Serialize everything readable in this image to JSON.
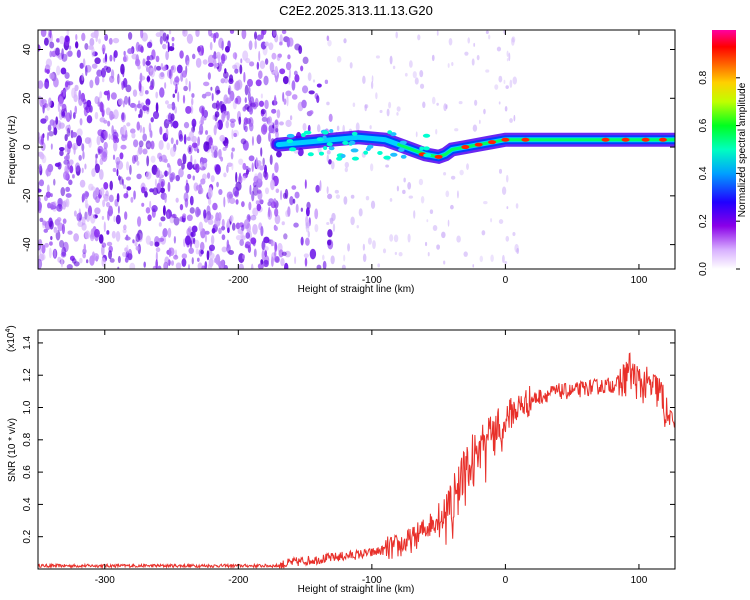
{
  "title": "C2E2.2025.313.11.13.G20",
  "chart_data": [
    {
      "type": "heatmap",
      "name": "spectrogram",
      "xlabel": "Height of straight line (km)",
      "ylabel": "Frequency (Hz)",
      "xlim": [
        -350,
        127
      ],
      "ylim": [
        -50,
        48
      ],
      "xticks": [
        -300,
        -200,
        -100,
        0,
        100
      ],
      "yticks": [
        -40,
        -20,
        0,
        20,
        40
      ],
      "colorbar": {
        "label": "Normalized spectral amplitude",
        "range": [
          0,
          1
        ],
        "ticks": [
          "0.0",
          "0.2",
          "0.4",
          "0.6",
          "0.8"
        ],
        "tick_values": [
          0,
          0.2,
          0.4,
          0.6,
          0.8
        ],
        "colors": [
          "#ffffff",
          "#8a00e8",
          "#0000ff",
          "#00c8ff",
          "#00ff40",
          "#ffff00",
          "#ff8000",
          "#ff0000",
          "#ff00b0"
        ]
      },
      "description_values": {
        "signal_track": {
          "x": [
            -170,
            -150,
            -130,
            -110,
            -90,
            -80,
            -70,
            -60,
            -50,
            -45,
            -40,
            -30,
            -20,
            -10,
            0,
            20,
            40,
            60,
            80,
            100,
            127
          ],
          "freq": [
            1,
            2,
            3,
            4,
            3,
            1,
            -1,
            -3,
            -4,
            -3,
            -1,
            0,
            1,
            2,
            3,
            3,
            3,
            3,
            3,
            3,
            3
          ]
        }
      }
    },
    {
      "type": "line",
      "name": "snr",
      "xlabel": "Height of straight line (km)",
      "ylabel": "SNR (10 * v/v)",
      "scale_label": "(x10",
      "scale_exponent": "4",
      "xlim": [
        -350,
        127
      ],
      "ylim": [
        0,
        1.48
      ],
      "xticks": [
        -300,
        -200,
        -100,
        0,
        100
      ],
      "yticks": [
        "0.2",
        "0.4",
        "0.6",
        "0.8",
        "1.0",
        "1.2",
        "1.4"
      ],
      "ytick_values": [
        0.2,
        0.4,
        0.6,
        0.8,
        1.0,
        1.2,
        1.4
      ],
      "color": "#e8302a",
      "series": [
        {
          "name": "SNR",
          "x": [
            -350,
            -300,
            -250,
            -200,
            -170,
            -160,
            -140,
            -120,
            -100,
            -90,
            -80,
            -70,
            -60,
            -50,
            -45,
            -40,
            -35,
            -30,
            -25,
            -20,
            -15,
            -10,
            -5,
            0,
            10,
            20,
            30,
            40,
            50,
            60,
            70,
            80,
            85,
            90,
            92,
            95,
            100,
            110,
            115,
            118,
            120,
            127
          ],
          "y": [
            0.02,
            0.02,
            0.02,
            0.02,
            0.02,
            0.04,
            0.06,
            0.08,
            0.1,
            0.12,
            0.14,
            0.18,
            0.25,
            0.32,
            0.36,
            0.42,
            0.55,
            0.65,
            0.74,
            0.8,
            0.83,
            0.86,
            0.9,
            0.94,
            1.0,
            1.05,
            1.08,
            1.1,
            1.1,
            1.12,
            1.13,
            1.14,
            1.15,
            1.18,
            1.25,
            1.2,
            1.15,
            1.12,
            1.1,
            1.05,
            0.95,
            0.92
          ]
        }
      ]
    }
  ]
}
